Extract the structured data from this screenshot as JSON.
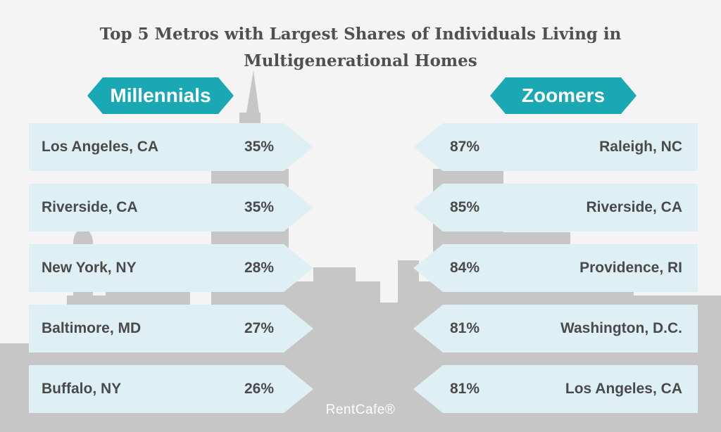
{
  "title_line1": "Top 5 Metros with Largest Shares of Individuals Living in",
  "title_line2": "Multigenerational Homes",
  "brand": "RentCafe®",
  "colors": {
    "banner": "#1ba8b5",
    "row": "#dff0f4",
    "skyline": "#c6c6c6",
    "background": "#f4f4f4"
  },
  "chart_data": {
    "type": "table",
    "title": "Top 5 Metros with Largest Shares of Individuals Living in Multigenerational Homes",
    "groups": [
      {
        "label": "Millennials",
        "rows": [
          {
            "metro": "Los Angeles, CA",
            "value": "35%"
          },
          {
            "metro": "Riverside, CA",
            "value": "35%"
          },
          {
            "metro": "New York, NY",
            "value": "28%"
          },
          {
            "metro": "Baltimore, MD",
            "value": "27%"
          },
          {
            "metro": "Buffalo, NY",
            "value": "26%"
          }
        ]
      },
      {
        "label": "Zoomers",
        "rows": [
          {
            "metro": "Raleigh, NC",
            "value": "87%"
          },
          {
            "metro": "Riverside, CA",
            "value": "85%"
          },
          {
            "metro": "Providence, RI",
            "value": "84%"
          },
          {
            "metro": "Washington, D.C.",
            "value": "81%"
          },
          {
            "metro": "Los Angeles, CA",
            "value": "81%"
          }
        ]
      }
    ]
  }
}
